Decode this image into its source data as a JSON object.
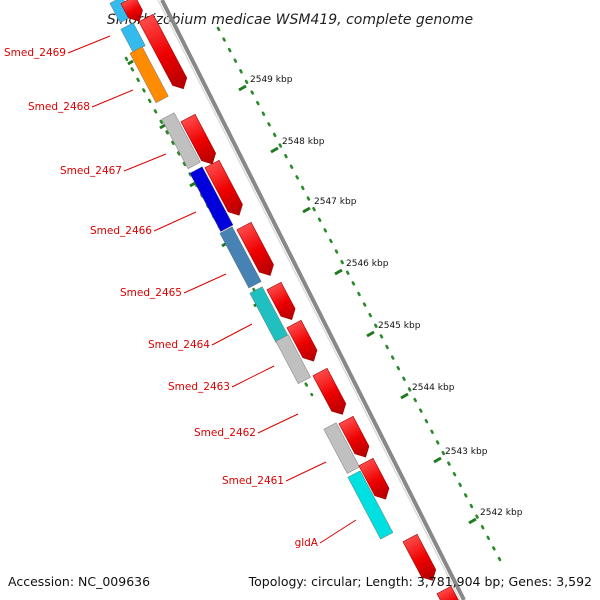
{
  "title": "Sinorhizobium medicae WSM419, complete genome",
  "footer": {
    "accession": "Accession: NC_009636",
    "topology": "Topology: circular; Length: 3,781,904 bp; Genes: 3,592"
  },
  "colors": {
    "forward_gene": "#ee0000",
    "backbone": "#8a8a8a",
    "label": "#dd0000",
    "tick": "#1e7a1e"
  },
  "ruler_labels": [
    "2549 kbp",
    "2548 kbp",
    "2547 kbp",
    "2546 kbp",
    "2545 kbp",
    "2544 kbp",
    "2543 kbp",
    "2542 kbp"
  ],
  "gene_labels": [
    "Smed_2469",
    "Smed_2468",
    "Smed_2467",
    "Smed_2466",
    "Smed_2465",
    "Smed_2464",
    "Smed_2463",
    "Smed_2462",
    "Smed_2461",
    "gldA"
  ],
  "cog_colors": {
    "Smed_2469": "#33bbee",
    "Smed_2468": "#ff8c00",
    "Smed_2467": "#c0c0c0",
    "Smed_2466": "#0000dd",
    "Smed_2465": "#4682b4",
    "Smed_2464": "#20c0c0",
    "Smed_2463": "#c0c0c0",
    "Smed_2461": "#c0c0c0",
    "gldA": "#00e0e0"
  }
}
